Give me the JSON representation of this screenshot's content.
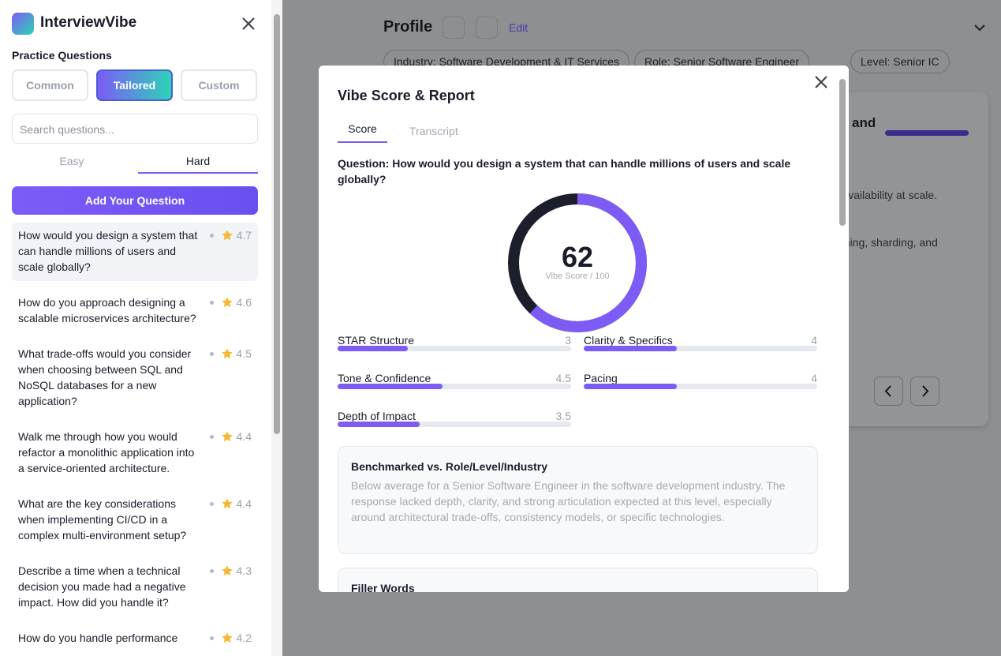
{
  "sidebar": {
    "brand": "InterviewVibe",
    "section_title": "Practice Questions",
    "tabs": [
      "Common",
      "Tailored",
      "Custom"
    ],
    "search_placeholder": "Search questions...",
    "difficulty": [
      "Easy",
      "Hard"
    ],
    "add_button": "Add Your Question",
    "questions": [
      {
        "text": "How would you design a system that can handle millions of users and scale globally?",
        "rating": 4.7
      },
      {
        "text": "How do you approach designing a scalable microservices architecture?",
        "rating": 4.6
      },
      {
        "text": "What trade-offs would you consider when choosing between SQL and NoSQL databases for a new application?",
        "rating": 4.5
      },
      {
        "text": "Walk me through how you would refactor a monolithic application into a service-oriented architecture.",
        "rating": 4.4
      },
      {
        "text": "What are the key considerations when implementing CI/CD in a complex multi-environment setup?",
        "rating": 4.4
      },
      {
        "text": "Describe a time when a technical decision you made had a negative impact. How did you handle it?",
        "rating": 4.3
      },
      {
        "text": "How do you handle performance",
        "rating": 4.2
      }
    ]
  },
  "background": {
    "title": "Profile",
    "edit": "Edit",
    "tags": [
      "Industry: Software Development & IT Services",
      "Role: Senior Software Engineer",
      "Level: Senior IC"
    ],
    "card_fragments": [
      "and",
      "nd availability at scale.",
      "caching, sharding, and"
    ]
  },
  "modal": {
    "title": "Vibe Score & Report",
    "tabs": [
      "Score",
      "Transcript"
    ],
    "question": "Question: How would you design a system that can handle millions of users and scale globally?",
    "score": 62,
    "score_caption": "Vibe Score / 100",
    "metrics": [
      {
        "name": "STAR Structure",
        "value": 3
      },
      {
        "name": "Clarity & Specifics",
        "value": 4
      },
      {
        "name": "Tone & Confidence",
        "value": 4.5
      },
      {
        "name": "Pacing",
        "value": 4
      },
      {
        "name": "Depth of Impact",
        "value": 3.5
      }
    ],
    "benchmark": {
      "title": "Benchmarked vs. Role/Level/Industry",
      "text": "Below average for a Senior Software Engineer in the software development industry. The response lacked depth, clarity, and strong articulation expected at this level, especially around architectural trade-offs, consistency models, or specific technologies."
    },
    "filler_title": "Filler Words"
  }
}
